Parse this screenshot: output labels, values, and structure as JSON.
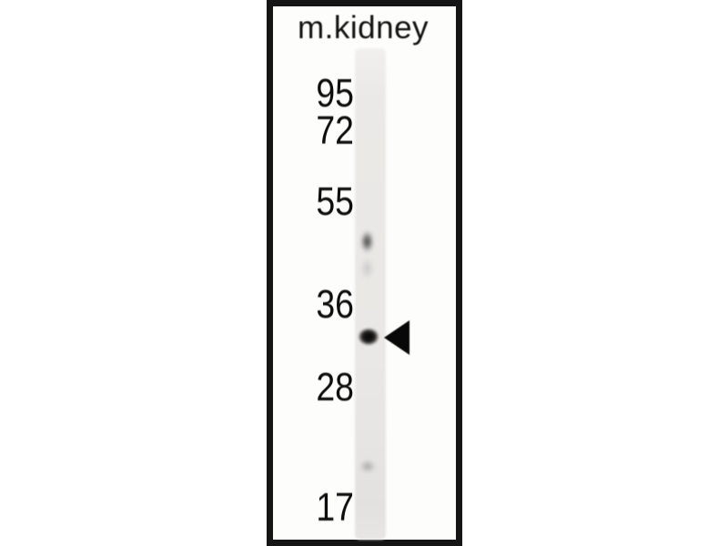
{
  "colors": {
    "page_background": "#ffffff",
    "frame_border": "#151515",
    "panel_background": "#fdfdfc",
    "lane_gray": "#e9e8e6",
    "text": "#121212",
    "band_strong": "#0a0a0a",
    "band_faint_upper": "#4f4f4f",
    "band_faint_lower": "#a9a9a7",
    "arrow": "#080808"
  },
  "blot": {
    "figure_type": "western-blot",
    "lane_label": "m.kidney",
    "markers": [
      {
        "label": "95",
        "kda": 95
      },
      {
        "label": "72",
        "kda": 72
      },
      {
        "label": "55",
        "kda": 55
      },
      {
        "label": "36",
        "kda": 36
      },
      {
        "label": "28",
        "kda": 28
      },
      {
        "label": "17",
        "kda": 17
      }
    ],
    "bands": [
      {
        "name": "faint-smudge-upper",
        "approx_kda": 46,
        "intensity": "faint"
      },
      {
        "name": "main-band",
        "approx_kda": 32,
        "intensity": "strong",
        "marked_by_arrow": true
      },
      {
        "name": "faint-band-lower",
        "approx_kda": 20,
        "intensity": "very-faint"
      }
    ],
    "arrow": {
      "direction": "left",
      "points_to": "main-band"
    }
  }
}
